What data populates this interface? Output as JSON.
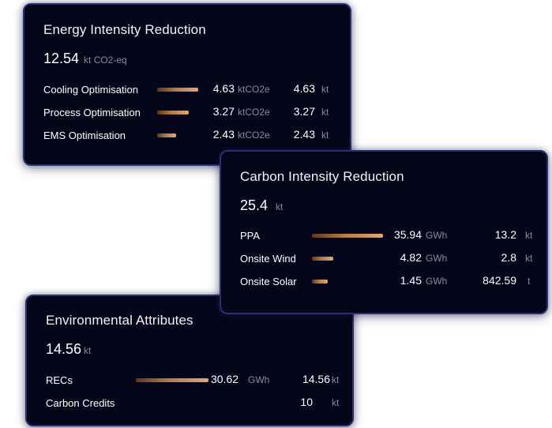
{
  "energy": {
    "title": "Energy Intensity Reduction",
    "total": "12.54",
    "total_unit": "kt CO2-eq",
    "rows": [
      {
        "label": "Cooling Optimisation",
        "value": "4.63",
        "value_unit": "ktCO2e",
        "kt": "4.63",
        "kt_unit": "kt"
      },
      {
        "label": "Process Optimisation",
        "value": "3.27",
        "value_unit": "ktCO2e",
        "kt": "3.27",
        "kt_unit": "kt"
      },
      {
        "label": "EMS Optimisation",
        "value": "2.43",
        "value_unit": "ktCO2e",
        "kt": "2.43",
        "kt_unit": "kt"
      }
    ]
  },
  "carbon": {
    "title": "Carbon Intensity Reduction",
    "total": "25.4",
    "total_unit": "kt",
    "rows": [
      {
        "label": "PPA",
        "value": "35.94",
        "value_unit": "GWh",
        "kt": "13.2",
        "kt_unit": "kt"
      },
      {
        "label": "Onsite Wind",
        "value": "4.82",
        "value_unit": "GWh",
        "kt": "2.8",
        "kt_unit": "kt"
      },
      {
        "label": "Onsite Solar",
        "value": "1.45",
        "value_unit": "GWh",
        "kt": "842.59",
        "kt_unit": "t"
      }
    ]
  },
  "env": {
    "title": "Environmental Attributes",
    "total": "14.56",
    "total_unit": "kt",
    "rows": [
      {
        "label": "RECs",
        "value": "30.62",
        "value_unit": "GWh",
        "kt": "14.56",
        "kt_unit": "kt"
      },
      {
        "label": "Carbon Credits",
        "value": "",
        "value_unit": "",
        "kt": "10",
        "kt_unit": "kt"
      }
    ]
  }
}
